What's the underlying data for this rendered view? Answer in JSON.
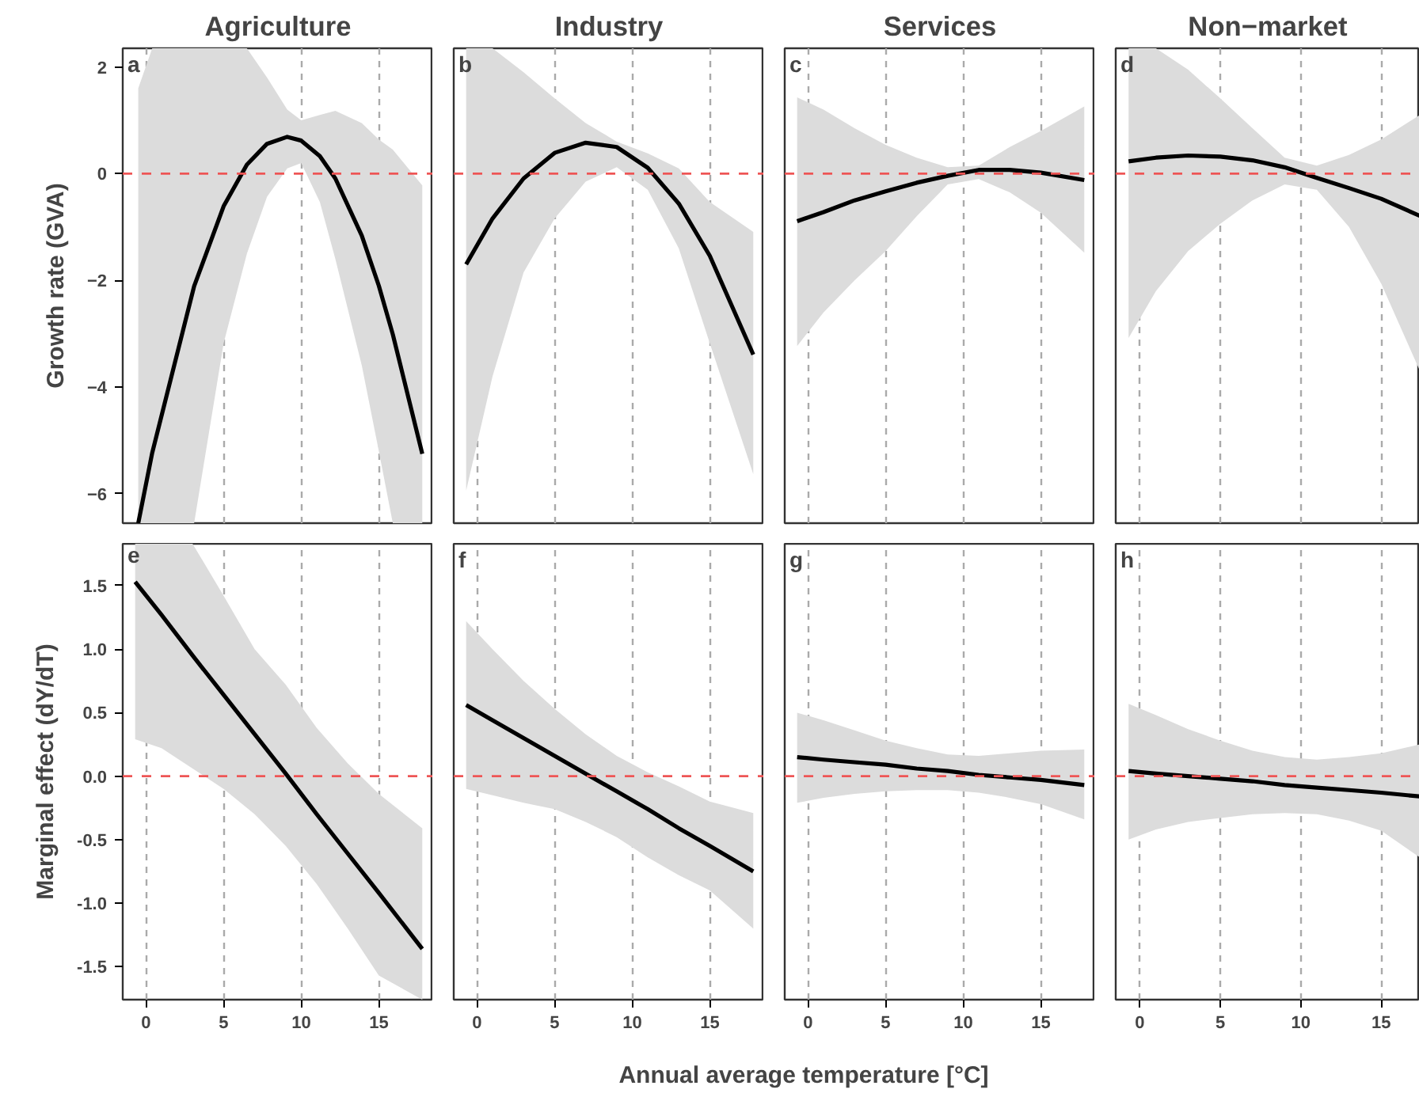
{
  "chart_data": [
    {
      "type": "line",
      "title": "Agriculture",
      "ylabel": "Growth rate (GVA)",
      "annotations": [
        "a"
      ],
      "xlim": [
        -1.5,
        18.5
      ],
      "ylim": [
        -6.55,
        2.35
      ],
      "xticks": [
        0,
        5,
        10,
        15
      ],
      "yticks": [
        -6,
        -4,
        -2,
        0,
        2
      ],
      "tick_labels": "y",
      "grid": "x",
      "line_style": "solid",
      "ref_lines": [
        {
          "axis": "y",
          "value": 0,
          "color": "#ee5555",
          "line_style": "dashed"
        }
      ],
      "series": [
        {
          "color": "#000000",
          "x": [
            -0.5,
            0.4,
            3.1,
            5,
            6.5,
            7.8,
            9.1,
            10,
            11.2,
            12.2,
            13.9,
            15,
            15.9,
            17.8
          ],
          "values": [
            -6.55,
            -5.23,
            -2.11,
            -0.61,
            0.17,
            0.56,
            0.69,
            0.62,
            0.33,
            -0.09,
            -1.16,
            -2.1,
            -3.01,
            -5.25
          ],
          "lower": [
            -6.55,
            -6.55,
            -6.55,
            -3.18,
            -1.5,
            -0.43,
            0.1,
            0.2,
            -0.53,
            -1.6,
            -3.59,
            -5.2,
            -6.55,
            -6.55
          ],
          "upper": [
            1.6,
            2.35,
            2.35,
            2.35,
            2.35,
            1.8,
            1.2,
            1.0,
            1.1,
            1.18,
            0.95,
            0.64,
            0.45,
            -0.22
          ]
        }
      ]
    },
    {
      "type": "line",
      "title": "Industry",
      "annotations": [
        "b"
      ],
      "xlim": [
        -1.5,
        18.5
      ],
      "ylim": [
        -6.55,
        2.35
      ],
      "xticks": [
        0,
        5,
        10,
        15
      ],
      "yticks": [
        -6,
        -4,
        -2,
        0,
        2
      ],
      "tick_labels": false,
      "grid": "x",
      "line_style": "solid",
      "ref_lines": [
        {
          "axis": "y",
          "value": 0,
          "color": "#ee5555",
          "line_style": "dashed"
        }
      ],
      "series": [
        {
          "color": "#000000",
          "x": [
            -0.7,
            1,
            3,
            5,
            7,
            9,
            11,
            13,
            15,
            17.8
          ],
          "values": [
            -1.7,
            -0.84,
            -0.09,
            0.39,
            0.58,
            0.5,
            0.11,
            -0.56,
            -1.54,
            -3.39
          ],
          "lower": [
            -5.94,
            -3.8,
            -1.85,
            -0.84,
            -0.15,
            0.12,
            -0.3,
            -1.4,
            -3.18,
            -5.63
          ],
          "upper": [
            2.35,
            2.35,
            1.9,
            1.41,
            0.95,
            0.6,
            0.38,
            0.1,
            -0.53,
            -1.09
          ]
        }
      ]
    },
    {
      "type": "line",
      "title": "Services",
      "annotations": [
        "c"
      ],
      "xlim": [
        -1.5,
        18.5
      ],
      "ylim": [
        -6.55,
        2.35
      ],
      "xticks": [
        0,
        5,
        10,
        15
      ],
      "yticks": [
        -6,
        -4,
        -2,
        0,
        2
      ],
      "tick_labels": false,
      "grid": "x",
      "line_style": "solid",
      "ref_lines": [
        {
          "axis": "y",
          "value": 0,
          "color": "#ee5555",
          "line_style": "dashed"
        }
      ],
      "series": [
        {
          "color": "#000000",
          "x": [
            -0.7,
            1,
            3,
            5,
            7,
            9,
            11,
            13,
            15,
            17.8
          ],
          "values": [
            -0.89,
            -0.72,
            -0.5,
            -0.33,
            -0.17,
            -0.04,
            0.07,
            0.07,
            0.02,
            -0.12
          ],
          "lower": [
            -3.23,
            -2.6,
            -2.0,
            -1.45,
            -0.8,
            -0.2,
            -0.1,
            -0.35,
            -0.73,
            -1.48
          ],
          "upper": [
            1.43,
            1.2,
            0.85,
            0.54,
            0.3,
            0.12,
            0.15,
            0.5,
            0.8,
            1.26
          ]
        }
      ]
    },
    {
      "type": "line",
      "title": "Non−market",
      "annotations": [
        "d"
      ],
      "xlim": [
        -1.5,
        17.4
      ],
      "ylim": [
        -6.55,
        2.35
      ],
      "xticks": [
        0,
        5,
        10,
        15
      ],
      "yticks": [
        -6,
        -4,
        -2,
        0,
        2
      ],
      "tick_labels": false,
      "grid": "x",
      "line_style": "solid",
      "ref_lines": [
        {
          "axis": "y",
          "value": 0,
          "color": "#ee5555",
          "line_style": "dashed"
        }
      ],
      "series": [
        {
          "color": "#000000",
          "x": [
            -0.7,
            1,
            3,
            5,
            7,
            9,
            11,
            13,
            15,
            17.4
          ],
          "values": [
            0.23,
            0.3,
            0.34,
            0.32,
            0.25,
            0.12,
            -0.08,
            -0.27,
            -0.47,
            -0.79
          ],
          "lower": [
            -3.08,
            -2.2,
            -1.45,
            -0.94,
            -0.5,
            -0.2,
            -0.3,
            -1.0,
            -2.06,
            -3.69
          ],
          "upper": [
            2.35,
            2.35,
            1.95,
            1.41,
            0.85,
            0.3,
            0.15,
            0.35,
            0.64,
            1.1
          ]
        }
      ]
    },
    {
      "type": "line",
      "ylabel": "Marginal effect (dY/dT)",
      "annotations": [
        "e"
      ],
      "xlim": [
        -1.5,
        18.5
      ],
      "ylim": [
        -1.76,
        1.83
      ],
      "xticks": [
        0,
        5,
        10,
        15
      ],
      "yticks": [
        {
          "value": -1.5,
          "label": "-1.5"
        },
        {
          "value": -1,
          "label": "-1.0"
        },
        {
          "value": -0.5,
          "label": "-0.5"
        },
        {
          "value": 0,
          "label": "0.0"
        },
        0.5,
        {
          "value": 1,
          "label": "1.0"
        },
        1.5
      ],
      "grid": "x",
      "line_style": "solid",
      "ref_lines": [
        {
          "axis": "y",
          "value": 0,
          "color": "#ee5555",
          "line_style": "dashed"
        }
      ],
      "series": [
        {
          "color": "#000000",
          "x": [
            -0.7,
            1,
            3,
            5,
            7,
            9,
            11,
            13,
            15,
            17.8
          ],
          "values": [
            1.53,
            1.27,
            0.95,
            0.64,
            0.33,
            0.02,
            -0.3,
            -0.61,
            -0.92,
            -1.36
          ],
          "lower": [
            0.29,
            0.22,
            0.06,
            -0.1,
            -0.3,
            -0.55,
            -0.85,
            -1.2,
            -1.57,
            -1.76
          ],
          "upper": [
            1.83,
            1.83,
            1.83,
            1.42,
            1.0,
            0.72,
            0.38,
            0.1,
            -0.14,
            -0.41
          ]
        }
      ]
    },
    {
      "type": "line",
      "xlabel": "Annual average temperature [°C]",
      "annotations": [
        "f"
      ],
      "xlim": [
        -1.5,
        18.5
      ],
      "ylim": [
        -1.76,
        1.83
      ],
      "xticks": [
        0,
        5,
        10,
        15
      ],
      "yticks": [
        -1.5,
        -1,
        -0.5,
        0,
        0.5,
        1,
        1.5
      ],
      "tick_labels": "x",
      "grid": "x",
      "line_style": "solid",
      "ref_lines": [
        {
          "axis": "y",
          "value": 0,
          "color": "#ee5555",
          "line_style": "dashed"
        }
      ],
      "series": [
        {
          "color": "#000000",
          "x": [
            -0.7,
            1,
            3,
            5,
            7,
            9,
            11,
            13,
            15,
            17.8
          ],
          "values": [
            0.56,
            0.44,
            0.3,
            0.16,
            0.02,
            -0.12,
            -0.26,
            -0.41,
            -0.55,
            -0.75
          ],
          "lower": [
            -0.1,
            -0.15,
            -0.21,
            -0.26,
            -0.36,
            -0.48,
            -0.64,
            -0.78,
            -0.9,
            -1.2
          ],
          "upper": [
            1.22,
            1.0,
            0.75,
            0.53,
            0.33,
            0.16,
            0.03,
            -0.08,
            -0.2,
            -0.29
          ]
        }
      ]
    },
    {
      "type": "line",
      "annotations": [
        "g"
      ],
      "xlim": [
        -1.5,
        18.5
      ],
      "ylim": [
        -1.76,
        1.83
      ],
      "xticks": [
        0,
        5,
        10,
        15
      ],
      "yticks": [
        -1.5,
        -1,
        -0.5,
        0,
        0.5,
        1,
        1.5
      ],
      "tick_labels": "x",
      "grid": "x",
      "line_style": "solid",
      "ref_lines": [
        {
          "axis": "y",
          "value": 0,
          "color": "#ee5555",
          "line_style": "dashed"
        }
      ],
      "series": [
        {
          "color": "#000000",
          "x": [
            -0.7,
            1,
            3,
            5,
            7,
            9,
            11,
            13,
            15,
            17.8
          ],
          "values": [
            0.15,
            0.13,
            0.11,
            0.09,
            0.06,
            0.04,
            0.01,
            -0.01,
            -0.03,
            -0.07
          ],
          "lower": [
            -0.21,
            -0.17,
            -0.14,
            -0.12,
            -0.11,
            -0.11,
            -0.13,
            -0.17,
            -0.22,
            -0.34
          ],
          "upper": [
            0.5,
            0.44,
            0.36,
            0.28,
            0.22,
            0.17,
            0.16,
            0.18,
            0.2,
            0.21
          ]
        }
      ]
    },
    {
      "type": "line",
      "annotations": [
        "h"
      ],
      "xlim": [
        -1.5,
        17.4
      ],
      "ylim": [
        -1.76,
        1.83
      ],
      "xticks": [
        0,
        5,
        10,
        15
      ],
      "yticks": [
        -1.5,
        -1,
        -0.5,
        0,
        0.5,
        1,
        1.5
      ],
      "tick_labels": "x",
      "grid": "x",
      "line_style": "solid",
      "ref_lines": [
        {
          "axis": "y",
          "value": 0,
          "color": "#ee5555",
          "line_style": "dashed"
        }
      ],
      "series": [
        {
          "color": "#000000",
          "x": [
            -0.7,
            1,
            3,
            5,
            7,
            9,
            11,
            13,
            15,
            17.4
          ],
          "values": [
            0.04,
            0.02,
            0.0,
            -0.02,
            -0.04,
            -0.07,
            -0.09,
            -0.11,
            -0.13,
            -0.16
          ],
          "lower": [
            -0.5,
            -0.42,
            -0.36,
            -0.33,
            -0.3,
            -0.29,
            -0.3,
            -0.35,
            -0.43,
            -0.64
          ],
          "upper": [
            0.57,
            0.48,
            0.37,
            0.28,
            0.2,
            0.15,
            0.13,
            0.15,
            0.18,
            0.25
          ]
        }
      ]
    }
  ]
}
